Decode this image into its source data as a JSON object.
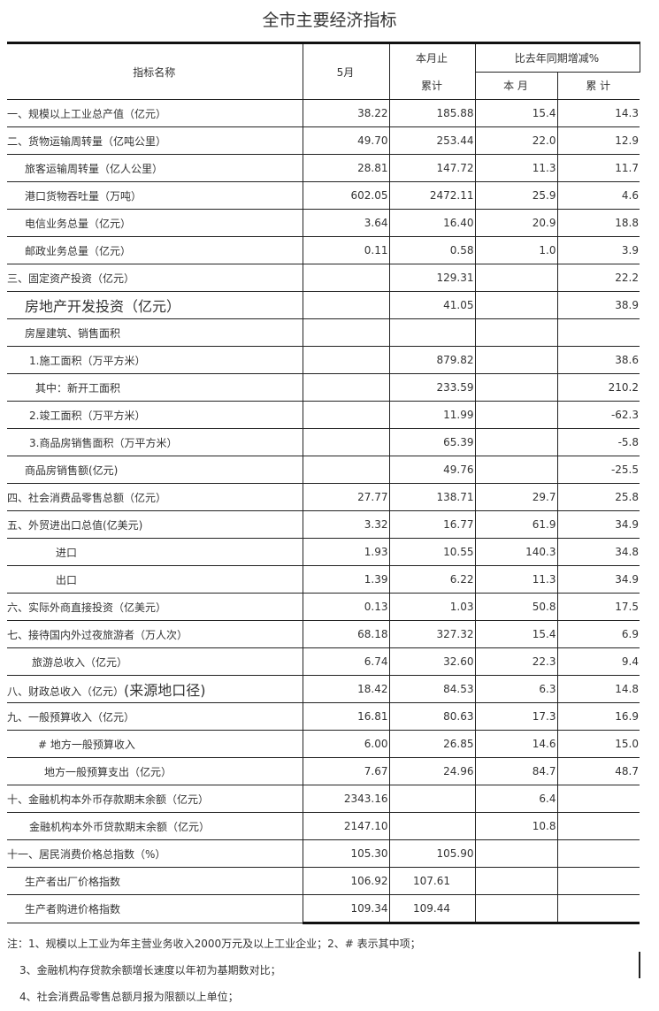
{
  "title": "全市主要经济指标",
  "header": {
    "name": "指标名称",
    "month": "5月",
    "cum_top": "本月止",
    "cum_bottom": "累计",
    "yoy": "比去年同期增减%",
    "yoy_month": "本 月",
    "yoy_cum": "累 计"
  },
  "rows": [
    [
      "一、规模以上工业总产值（亿元）",
      "38.22",
      "185.88",
      "15.4",
      "14.3"
    ],
    [
      "二、货物运输周转量（亿吨公里）",
      "49.70",
      "253.44",
      "22.0",
      "12.9"
    ],
    [
      "旅客运输周转量（亿人公里）",
      "28.81",
      "147.72",
      "11.3",
      "11.7"
    ],
    [
      "港口货物吞吐量（万吨）",
      "602.05",
      "2472.11",
      "25.9",
      "4.6"
    ],
    [
      "电信业务总量（亿元）",
      "3.64",
      "16.40",
      "20.9",
      "18.8"
    ],
    [
      "邮政业务总量（亿元）",
      "0.11",
      "0.58",
      "1.0",
      "3.9"
    ],
    [
      "三、固定资产投资（亿元）",
      "",
      "129.31",
      "",
      "22.2"
    ],
    [
      "房地产开发投资（亿元）",
      "",
      "41.05",
      "",
      "38.9"
    ],
    [
      "房屋建筑、销售面积",
      "",
      "",
      "",
      ""
    ],
    [
      "1.施工面积（万平方米）",
      "",
      "879.82",
      "",
      "38.6"
    ],
    [
      "其中：新开工面积",
      "",
      "233.59",
      "",
      "210.2"
    ],
    [
      "2.竣工面积（万平方米）",
      "",
      "11.99",
      "",
      "-62.3"
    ],
    [
      "3.商品房销售面积（万平方米）",
      "",
      "65.39",
      "",
      "-5.8"
    ],
    [
      "商品房销售额(亿元)",
      "",
      "49.76",
      "",
      "-25.5"
    ],
    [
      "四、社会消费品零售总额（亿元）",
      "27.77",
      "138.71",
      "29.7",
      "25.8"
    ],
    [
      "五、外贸进出口总值(亿美元)",
      "3.32",
      "16.77",
      "61.9",
      "34.9"
    ],
    [
      "进口",
      "1.93",
      "10.55",
      "140.3",
      "34.8"
    ],
    [
      "出口",
      "1.39",
      "6.22",
      "11.3",
      "34.9"
    ],
    [
      "六、实际外商直接投资（亿美元）",
      "0.13",
      "1.03",
      "50.8",
      "17.5"
    ],
    [
      "七、接待国内外过夜旅游者（万人次）",
      "68.18",
      "327.32",
      "15.4",
      "6.9"
    ],
    [
      "旅游总收入（亿元）",
      "6.74",
      "32.60",
      "22.3",
      "9.4"
    ],
    [
      "八、财政总收入（亿元）",
      "18.42",
      "84.53",
      "6.3",
      "14.8"
    ],
    [
      "九、一般预算收入（亿元）",
      "16.81",
      "80.63",
      "17.3",
      "16.9"
    ],
    [
      "# 地方一般预算收入",
      "6.00",
      "26.85",
      "14.6",
      "15.0"
    ],
    [
      "地方一般预算支出（亿元）",
      "7.67",
      "24.96",
      "84.7",
      "48.7"
    ],
    [
      "十、金融机构本外币存款期末余额（亿元）",
      "2343.16",
      "",
      "6.4",
      ""
    ],
    [
      "金融机构本外币贷款期末余额（亿元）",
      "2147.10",
      "",
      "10.8",
      ""
    ],
    [
      "十一、居民消费价格总指数（%）",
      "105.30",
      "105.90",
      "",
      ""
    ],
    [
      "生产者出厂价格指数",
      "106.92",
      "107.61",
      "",
      ""
    ],
    [
      "生产者购进价格指数",
      "109.34",
      "109.44",
      "",
      ""
    ]
  ],
  "row8_suffix": "(来源地口径)",
  "notes": [
    "注：1、规模以上工业为年主营业务收入2000万元及以上工业企业；2、# 表示其中项；",
    "3、金融机构存贷款余额增长速度以年初为基期数对比；",
    "4、社会消费品零售总额月报为限额以上单位；"
  ]
}
